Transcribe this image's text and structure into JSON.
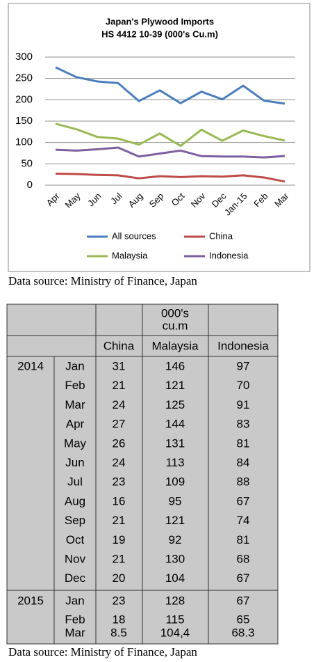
{
  "chart_data": {
    "type": "line",
    "title": [
      "Japan's Plywood Imports",
      "HS 4412 10-39  (000's Cu.m)"
    ],
    "categories": [
      "Apr",
      "May",
      "Jun",
      "Jul",
      "Aug",
      "Sep",
      "Oct",
      "Nov",
      "Dec",
      "Jan-15",
      "Feb",
      "Mar"
    ],
    "series": [
      {
        "name": "All sources",
        "color": "#4a7ebb",
        "values": [
          276,
          253,
          243,
          239,
          197,
          222,
          192,
          219,
          201,
          233,
          198,
          191
        ]
      },
      {
        "name": "China",
        "color": "#be4b48",
        "values": [
          27,
          26,
          24,
          23,
          16,
          21,
          19,
          21,
          20,
          23,
          18,
          8.5
        ]
      },
      {
        "name": "Malaysia",
        "color": "#98b954",
        "values": [
          144,
          131,
          113,
          109,
          95,
          121,
          92,
          130,
          104,
          128,
          115,
          104.4
        ]
      },
      {
        "name": "Indonesia",
        "color": "#7d60a0",
        "values": [
          83,
          81,
          84,
          88,
          67,
          74,
          81,
          68,
          67,
          67,
          65,
          68.3
        ]
      }
    ],
    "ylim": [
      0,
      300
    ],
    "yticks": [
      0,
      50,
      100,
      150,
      200,
      250,
      300
    ],
    "grid": true,
    "legend": "bottom"
  },
  "caption_chart": "Data source: Ministry of Finance, Japan",
  "table": {
    "unit": [
      "000's",
      "cu.m"
    ],
    "columns": [
      "China",
      "Malaysia",
      "Indonesia"
    ],
    "groups": [
      {
        "year": "2014",
        "rows": [
          [
            "Jan",
            "31",
            "146",
            "97"
          ],
          [
            "Feb",
            "21",
            "121",
            "70"
          ],
          [
            "Mar",
            "24",
            "125",
            "91"
          ],
          [
            "Apr",
            "27",
            "144",
            "83"
          ],
          [
            "May",
            "26",
            "131",
            "81"
          ],
          [
            "Jun",
            "24",
            "113",
            "84"
          ],
          [
            "Jul",
            "23",
            "109",
            "88"
          ],
          [
            "Aug",
            "16",
            "95",
            "67"
          ],
          [
            "Sep",
            "21",
            "121",
            "74"
          ],
          [
            "Oct",
            "19",
            "92",
            "81"
          ],
          [
            "Nov",
            "21",
            "130",
            "68"
          ],
          [
            "Dec",
            "20",
            "104",
            "67"
          ]
        ]
      },
      {
        "year": "2015",
        "rows": [
          [
            "Jan",
            "23",
            "128",
            "67"
          ],
          [
            "Feb",
            "18",
            "115",
            "65"
          ],
          [
            "Mar",
            "8.5",
            "104,4",
            "68.3"
          ]
        ]
      }
    ]
  },
  "caption_table": "Data source: Ministry of Finance, Japan"
}
